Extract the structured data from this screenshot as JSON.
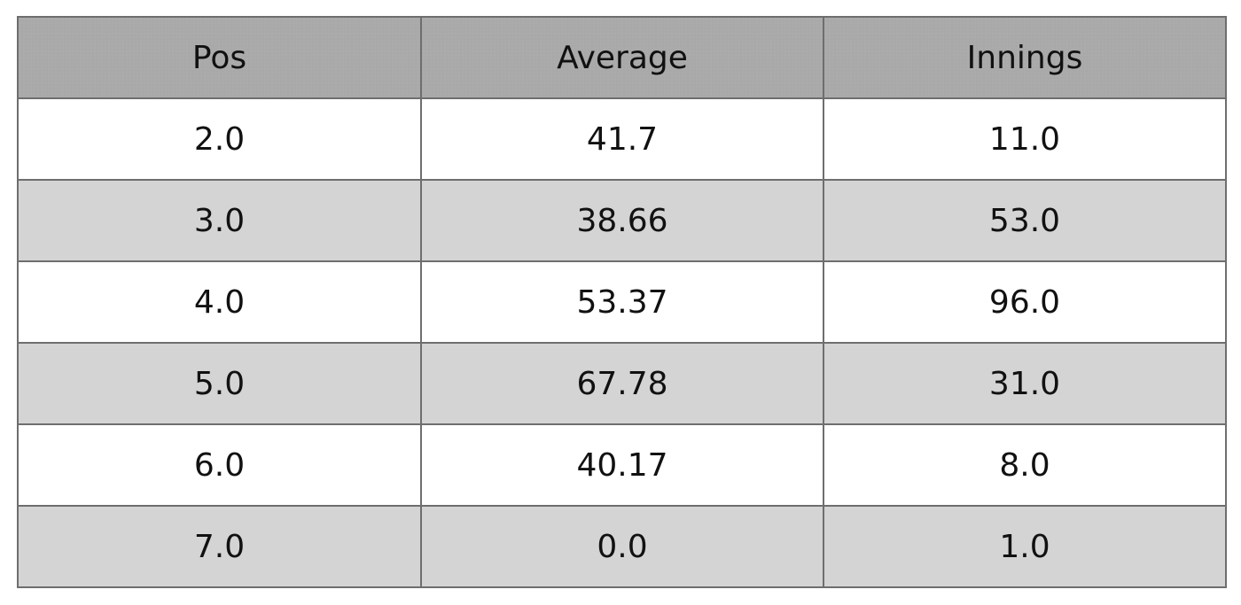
{
  "chart_data": {
    "type": "table",
    "columns": [
      "Pos",
      "Average",
      "Innings"
    ],
    "rows": [
      [
        "2.0",
        "41.7",
        "11.0"
      ],
      [
        "3.0",
        "38.66",
        "53.0"
      ],
      [
        "4.0",
        "53.37",
        "96.0"
      ],
      [
        "5.0",
        "67.78",
        "31.0"
      ],
      [
        "6.0",
        "40.17",
        "8.0"
      ],
      [
        "7.0",
        "0.0",
        "1.0"
      ]
    ],
    "colors": {
      "header_background": "#a9a9a9",
      "row_odd_background": "#ffffff",
      "row_even_background": "#d4d4d4",
      "border": "#6e6e6e",
      "text": "#111111"
    }
  }
}
